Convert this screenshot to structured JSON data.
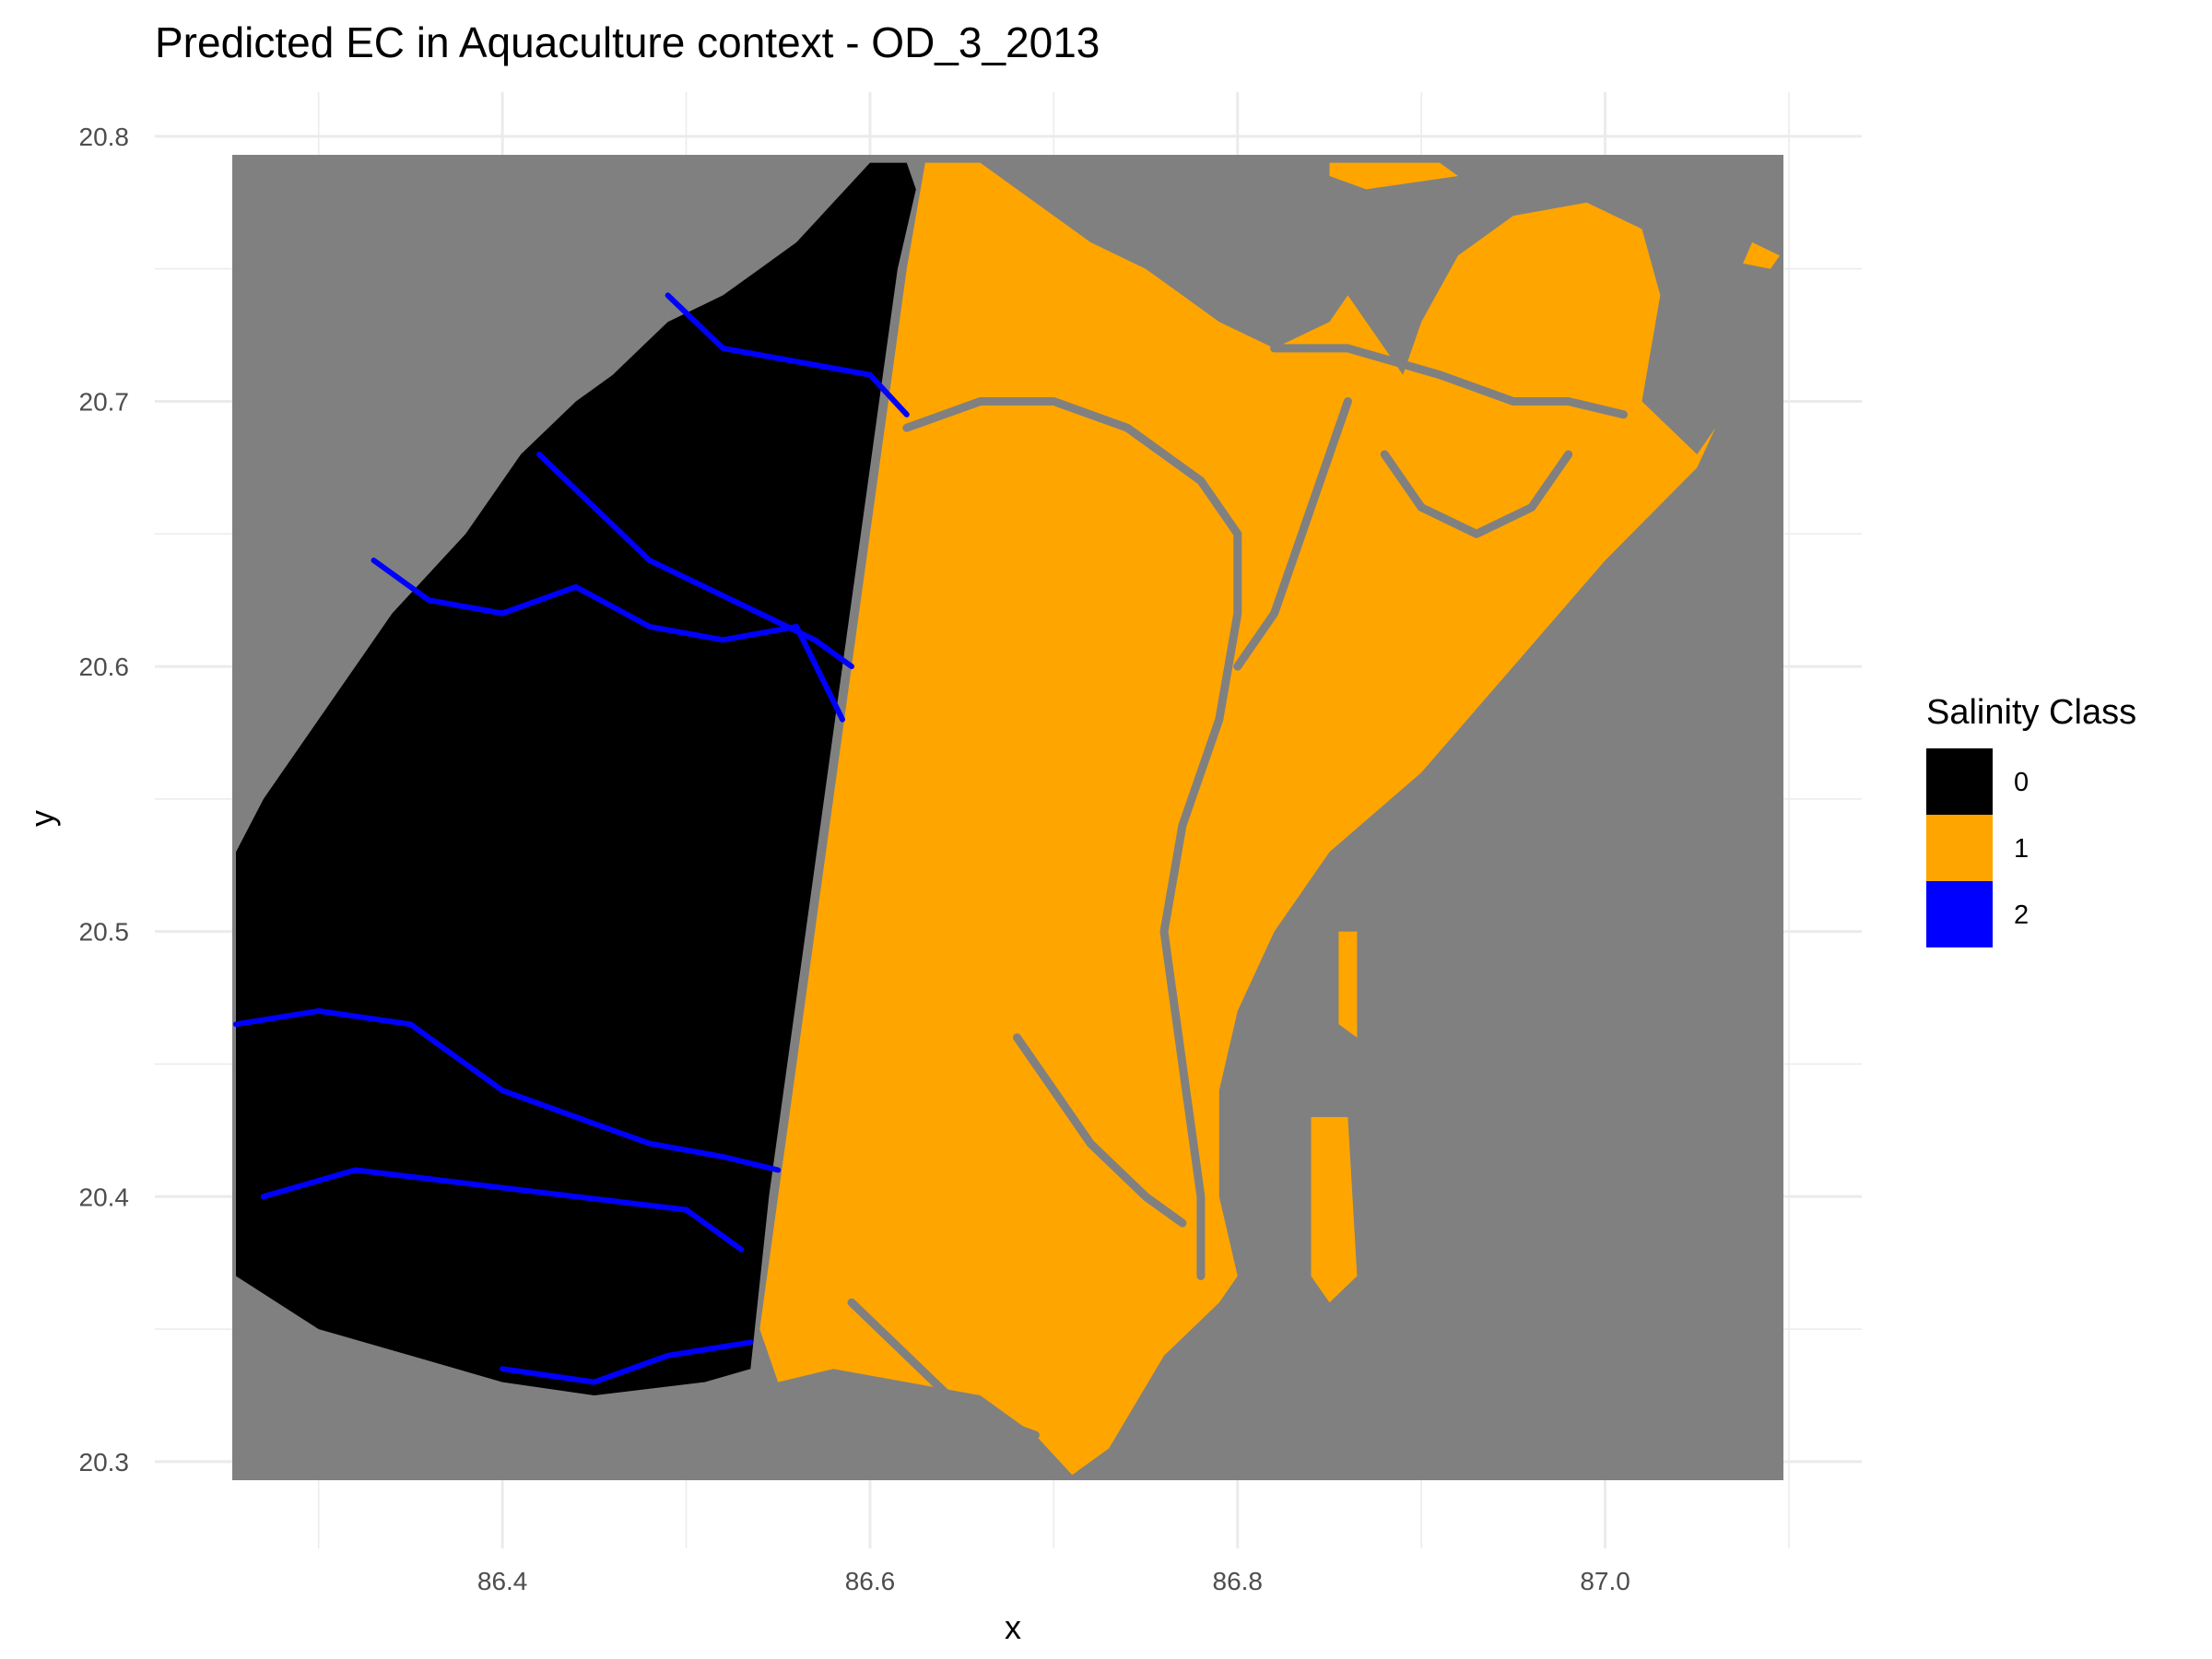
{
  "chart_data": {
    "type": "heatmap",
    "title": "Predicted EC in Aquaculture context - OD_3_2013",
    "xlabel": "x",
    "ylabel": "y",
    "xlim": [
      86.253,
      87.097
    ],
    "ylim": [
      20.293,
      20.793
    ],
    "x_ticks": [
      "86.4",
      "86.6",
      "86.8",
      "87.0"
    ],
    "x_tick_values": [
      86.4,
      86.6,
      86.8,
      87.0
    ],
    "y_ticks": [
      "20.3",
      "20.4",
      "20.5",
      "20.6",
      "20.7",
      "20.8"
    ],
    "y_tick_values": [
      20.3,
      20.4,
      20.5,
      20.6,
      20.7,
      20.8
    ],
    "grid": true,
    "na_color": "#808080",
    "legend": {
      "title": "Salinity Class",
      "position": "right",
      "entries": [
        {
          "label": "0",
          "color": "#000000"
        },
        {
          "label": "1",
          "color": "#FFA500"
        },
        {
          "label": "2",
          "color": "#0000FF"
        }
      ]
    },
    "regions": {
      "class0": [
        [
          86.62,
          20.79
        ],
        [
          86.6,
          20.79
        ],
        [
          86.56,
          20.76
        ],
        [
          86.54,
          20.75
        ],
        [
          86.52,
          20.74
        ],
        [
          86.49,
          20.73
        ],
        [
          86.46,
          20.71
        ],
        [
          86.44,
          20.7
        ],
        [
          86.41,
          20.68
        ],
        [
          86.38,
          20.65
        ],
        [
          86.34,
          20.62
        ],
        [
          86.32,
          20.6
        ],
        [
          86.3,
          20.58
        ],
        [
          86.28,
          20.56
        ],
        [
          86.27,
          20.55
        ],
        [
          86.255,
          20.53
        ],
        [
          86.255,
          20.37
        ],
        [
          86.3,
          20.35
        ],
        [
          86.35,
          20.34
        ],
        [
          86.4,
          20.33
        ],
        [
          86.45,
          20.325
        ],
        [
          86.51,
          20.33
        ],
        [
          86.535,
          20.335
        ],
        [
          86.545,
          20.4
        ],
        [
          86.555,
          20.45
        ],
        [
          86.565,
          20.5
        ],
        [
          86.575,
          20.55
        ],
        [
          86.585,
          20.6
        ],
        [
          86.595,
          20.65
        ],
        [
          86.605,
          20.7
        ],
        [
          86.615,
          20.75
        ],
        [
          86.625,
          20.78
        ]
      ],
      "class1_main": [
        [
          86.63,
          20.79
        ],
        [
          86.66,
          20.79
        ],
        [
          86.68,
          20.78
        ],
        [
          86.72,
          20.76
        ],
        [
          86.75,
          20.75
        ],
        [
          86.77,
          20.74
        ],
        [
          86.79,
          20.73
        ],
        [
          86.82,
          20.72
        ],
        [
          86.85,
          20.73
        ],
        [
          86.86,
          20.74
        ],
        [
          86.88,
          20.72
        ],
        [
          86.89,
          20.71
        ],
        [
          86.9,
          20.73
        ],
        [
          86.92,
          20.755
        ],
        [
          86.95,
          20.77
        ],
        [
          86.99,
          20.775
        ],
        [
          87.02,
          20.765
        ],
        [
          87.03,
          20.74
        ],
        [
          87.025,
          20.72
        ],
        [
          87.02,
          20.7
        ],
        [
          87.05,
          20.68
        ],
        [
          87.06,
          20.69
        ],
        [
          87.05,
          20.675
        ],
        [
          87.0,
          20.64
        ],
        [
          86.95,
          20.6
        ],
        [
          86.9,
          20.56
        ],
        [
          86.85,
          20.53
        ],
        [
          86.82,
          20.5
        ],
        [
          86.8,
          20.47
        ],
        [
          86.79,
          20.44
        ],
        [
          86.79,
          20.4
        ],
        [
          86.8,
          20.37
        ],
        [
          86.79,
          20.36
        ],
        [
          86.76,
          20.34
        ],
        [
          86.73,
          20.305
        ],
        [
          86.71,
          20.295
        ],
        [
          86.69,
          20.31
        ],
        [
          86.66,
          20.325
        ],
        [
          86.62,
          20.33
        ],
        [
          86.58,
          20.335
        ],
        [
          86.55,
          20.33
        ],
        [
          86.54,
          20.35
        ],
        [
          86.55,
          20.4
        ],
        [
          86.56,
          20.45
        ],
        [
          86.57,
          20.5
        ],
        [
          86.58,
          20.55
        ],
        [
          86.59,
          20.6
        ],
        [
          86.6,
          20.65
        ],
        [
          86.61,
          20.7
        ],
        [
          86.62,
          20.75
        ]
      ],
      "class1_patches": [
        [
          [
            86.85,
            20.79
          ],
          [
            86.91,
            20.79
          ],
          [
            86.92,
            20.785
          ],
          [
            86.87,
            20.78
          ],
          [
            86.85,
            20.785
          ]
        ],
        [
          [
            87.08,
            20.76
          ],
          [
            87.095,
            20.755
          ],
          [
            87.09,
            20.75
          ],
          [
            87.075,
            20.752
          ]
        ],
        [
          [
            86.84,
            20.43
          ],
          [
            86.86,
            20.43
          ],
          [
            86.865,
            20.37
          ],
          [
            86.85,
            20.36
          ],
          [
            86.84,
            20.37
          ]
        ],
        [
          [
            86.97,
            20.72
          ],
          [
            86.985,
            20.72
          ],
          [
            86.98,
            20.69
          ],
          [
            86.97,
            20.695
          ]
        ],
        [
          [
            86.855,
            20.5
          ],
          [
            86.865,
            20.5
          ],
          [
            86.865,
            20.46
          ],
          [
            86.855,
            20.465
          ]
        ]
      ],
      "class2_rivers": [
        [
          [
            86.255,
            20.465
          ],
          [
            86.3,
            20.47
          ],
          [
            86.35,
            20.465
          ],
          [
            86.4,
            20.44
          ],
          [
            86.44,
            20.43
          ],
          [
            86.48,
            20.42
          ],
          [
            86.52,
            20.415
          ],
          [
            86.55,
            20.41
          ]
        ],
        [
          [
            86.42,
            20.68
          ],
          [
            86.45,
            20.66
          ],
          [
            86.48,
            20.64
          ],
          [
            86.51,
            20.63
          ],
          [
            86.54,
            20.62
          ],
          [
            86.57,
            20.61
          ],
          [
            86.59,
            20.6
          ]
        ],
        [
          [
            86.33,
            20.64
          ],
          [
            86.36,
            20.625
          ],
          [
            86.4,
            20.62
          ],
          [
            86.44,
            20.63
          ],
          [
            86.48,
            20.615
          ],
          [
            86.52,
            20.61
          ],
          [
            86.56,
            20.615
          ],
          [
            86.585,
            20.58
          ]
        ],
        [
          [
            86.49,
            20.74
          ],
          [
            86.52,
            20.72
          ],
          [
            86.56,
            20.715
          ],
          [
            86.6,
            20.71
          ],
          [
            86.62,
            20.695
          ]
        ],
        [
          [
            86.27,
            20.4
          ],
          [
            86.32,
            20.41
          ],
          [
            86.38,
            20.405
          ],
          [
            86.44,
            20.4
          ],
          [
            86.5,
            20.395
          ],
          [
            86.53,
            20.38
          ]
        ],
        [
          [
            86.4,
            20.335
          ],
          [
            86.45,
            20.33
          ],
          [
            86.49,
            20.34
          ],
          [
            86.535,
            20.345
          ]
        ]
      ],
      "grey_channels": [
        [
          [
            86.62,
            20.69
          ],
          [
            86.66,
            20.7
          ],
          [
            86.7,
            20.7
          ],
          [
            86.74,
            20.69
          ],
          [
            86.78,
            20.67
          ],
          [
            86.8,
            20.65
          ],
          [
            86.8,
            20.62
          ],
          [
            86.79,
            20.58
          ],
          [
            86.77,
            20.54
          ],
          [
            86.76,
            20.5
          ],
          [
            86.77,
            20.45
          ],
          [
            86.78,
            20.4
          ],
          [
            86.78,
            20.37
          ]
        ],
        [
          [
            86.86,
            20.7
          ],
          [
            86.84,
            20.66
          ],
          [
            86.82,
            20.62
          ],
          [
            86.8,
            20.6
          ]
        ],
        [
          [
            86.82,
            20.72
          ],
          [
            86.86,
            20.72
          ],
          [
            86.91,
            20.71
          ],
          [
            86.95,
            20.7
          ],
          [
            86.98,
            20.7
          ],
          [
            87.01,
            20.695
          ]
        ],
        [
          [
            86.88,
            20.68
          ],
          [
            86.9,
            20.66
          ],
          [
            86.93,
            20.65
          ],
          [
            86.96,
            20.66
          ],
          [
            86.98,
            20.68
          ]
        ],
        [
          [
            86.59,
            20.36
          ],
          [
            86.62,
            20.34
          ],
          [
            86.65,
            20.32
          ],
          [
            86.69,
            20.31
          ]
        ],
        [
          [
            86.68,
            20.46
          ],
          [
            86.7,
            20.44
          ],
          [
            86.72,
            20.42
          ],
          [
            86.75,
            20.4
          ],
          [
            86.77,
            20.39
          ]
        ]
      ]
    }
  }
}
